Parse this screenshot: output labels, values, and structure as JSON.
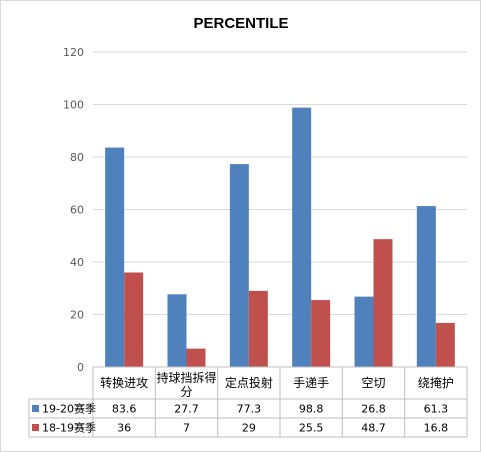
{
  "chart_data": {
    "type": "bar",
    "title": "PERCENTILE",
    "categories": [
      "转换进攻",
      "持球挡拆得分",
      "定点投射",
      "手递手",
      "空切",
      "绕掩护"
    ],
    "series": [
      {
        "name": "19-20赛季",
        "color": "#4f81bd",
        "values": [
          83.6,
          27.7,
          77.3,
          98.8,
          26.8,
          61.3
        ]
      },
      {
        "name": "18-19赛季",
        "color": "#c0504d",
        "values": [
          36,
          7,
          29,
          25.5,
          48.7,
          16.8
        ]
      }
    ],
    "value_labels": [
      [
        "83.6",
        "27.7",
        "77.3",
        "98.8",
        "26.8",
        "61.3"
      ],
      [
        "36",
        "7",
        "29",
        "25.5",
        "48.7",
        "16.8"
      ]
    ],
    "ylim": [
      0,
      120
    ],
    "yticks": [
      0,
      20,
      40,
      60,
      80,
      100,
      120
    ],
    "grid": true,
    "legend": "data-table"
  }
}
